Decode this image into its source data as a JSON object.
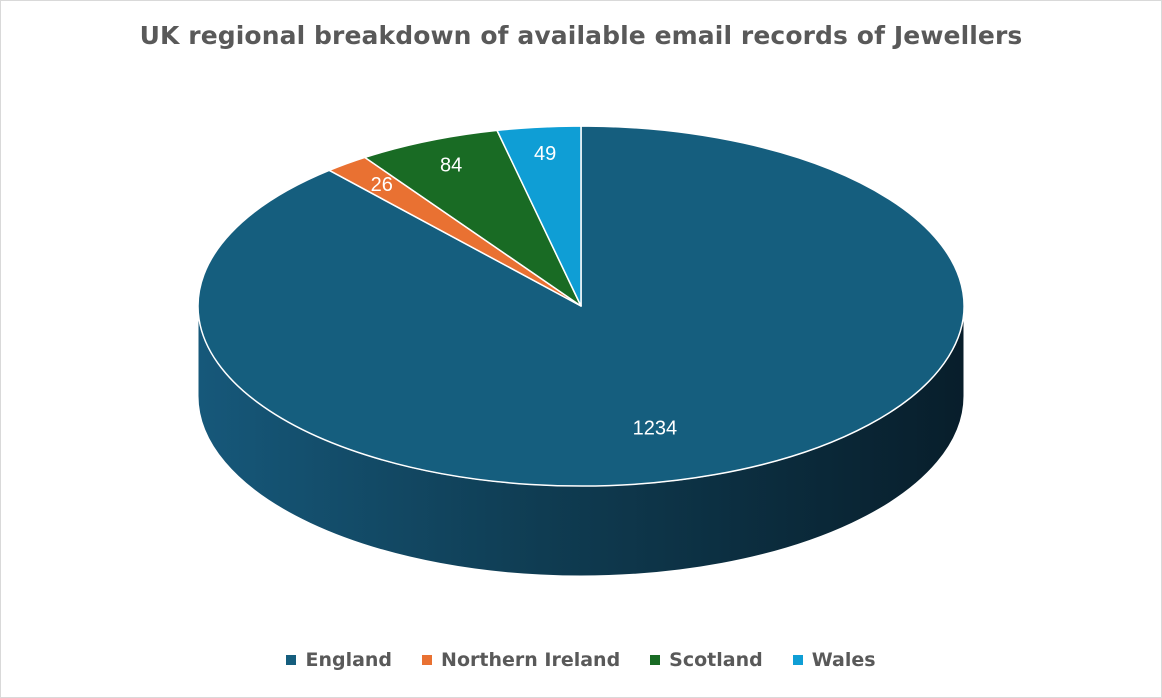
{
  "chart_data": {
    "type": "pie",
    "title": "UK regional breakdown of available email records of Jewellers",
    "style": "3d",
    "categories": [
      "England",
      "Northern Ireland",
      "Scotland",
      "Wales"
    ],
    "values": [
      1234,
      26,
      84,
      49
    ],
    "data_labels": [
      "1234",
      "26",
      "84",
      "49"
    ],
    "colors": [
      "#155E7E",
      "#E97132",
      "#196B24",
      "#0F9ED5"
    ],
    "side_colors": [
      "#0F3E55",
      "#A14E22",
      "#124A19",
      "#0B6E94"
    ],
    "legend_position": "bottom",
    "start_angle_deg": 0,
    "direction": "clockwise"
  }
}
